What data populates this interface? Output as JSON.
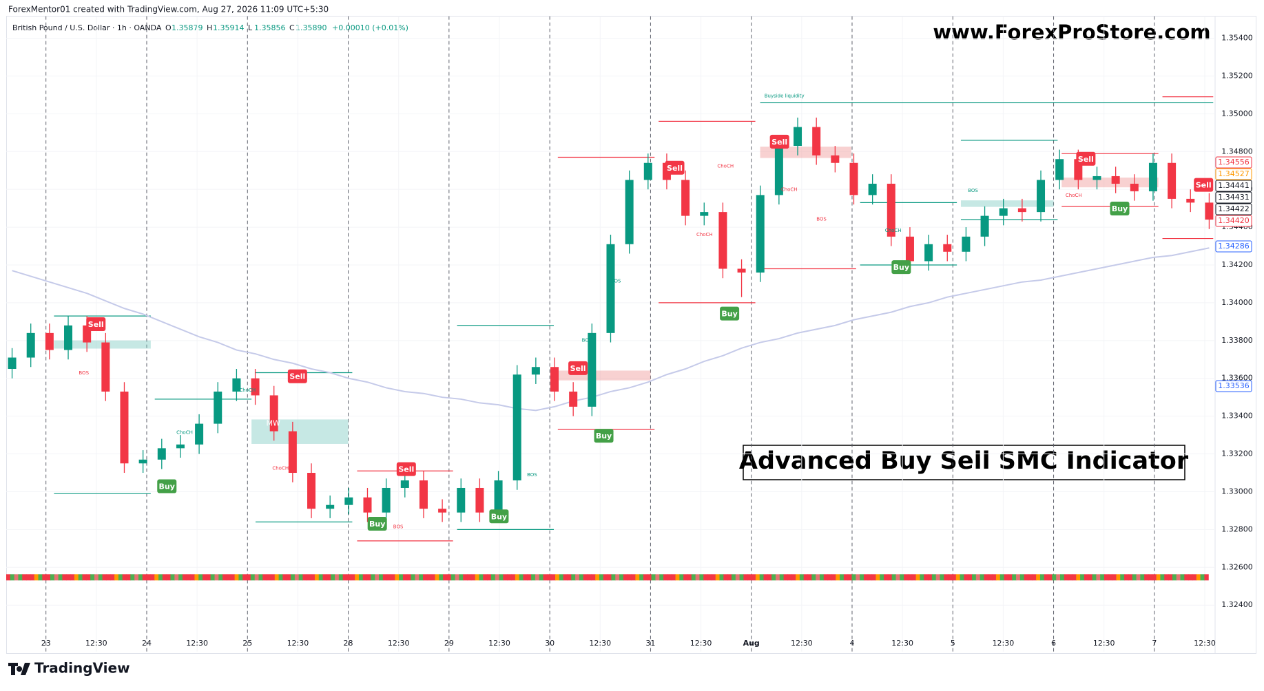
{
  "header": {
    "credit": "ForexMentor01 created with TradingView.com, Aug 27, 2026 11:09 UTC+5:30",
    "symbol": "British Pound / U.S. Dollar · 1h · OANDA",
    "ohlc": [
      {
        "key": "O",
        "value": "1.35879"
      },
      {
        "key": "H",
        "value": "1.35914"
      },
      {
        "key": "L",
        "value": "1.35856"
      },
      {
        "key": "C",
        "value": "1.35890"
      }
    ],
    "change": "+0.00010 (+0.01%)"
  },
  "watermark": "www.ForexProStore.com",
  "banner": "Advanced Buy Sell SMC Indicator",
  "footer": "TradingView",
  "chart_data": {
    "type": "candlestick",
    "up_color": "#089981",
    "down_color": "#f23645",
    "open": [
      1.3365,
      1.3371,
      1.3384,
      1.3375,
      1.3388,
      1.3379,
      1.3353,
      1.3315,
      1.3317,
      1.3323,
      1.3325,
      1.3336,
      1.3353,
      1.336,
      1.3351,
      1.3332,
      1.331,
      1.3291,
      1.3293,
      1.3297,
      1.3289,
      1.3302,
      1.3306,
      1.3291,
      1.3289,
      1.3302,
      1.3289,
      1.3306,
      1.3362,
      1.3366,
      1.3353,
      1.3345,
      1.3384,
      1.3431,
      1.3465,
      1.3474,
      1.3465,
      1.3446,
      1.3448,
      1.3418,
      1.3416,
      1.3457,
      1.3483,
      1.3493,
      1.3478,
      1.3474,
      1.3457,
      1.3463,
      1.3435,
      1.3422,
      1.3431,
      1.3427,
      1.3435,
      1.3446,
      1.345,
      1.3448,
      1.3465,
      1.3476,
      1.3465,
      1.3467,
      1.3463,
      1.3459,
      1.3474,
      1.3455,
      1.3453
    ],
    "high": [
      1.3376,
      1.3389,
      1.3389,
      1.3393,
      1.3393,
      1.3384,
      1.3358,
      1.3322,
      1.3328,
      1.333,
      1.3341,
      1.3358,
      1.3365,
      1.3365,
      1.3356,
      1.3337,
      1.3315,
      1.3298,
      1.3302,
      1.3302,
      1.3307,
      1.3311,
      1.3311,
      1.3296,
      1.3307,
      1.3307,
      1.3311,
      1.3367,
      1.3371,
      1.3371,
      1.3358,
      1.3389,
      1.3436,
      1.347,
      1.3479,
      1.3479,
      1.347,
      1.3453,
      1.3453,
      1.3423,
      1.3462,
      1.3488,
      1.3498,
      1.3498,
      1.3483,
      1.3479,
      1.3468,
      1.3468,
      1.344,
      1.3436,
      1.3436,
      1.344,
      1.3451,
      1.3455,
      1.3455,
      1.347,
      1.3481,
      1.3481,
      1.3472,
      1.3472,
      1.3468,
      1.3479,
      1.3479,
      1.346,
      1.3458
    ],
    "low": [
      1.336,
      1.3366,
      1.337,
      1.337,
      1.3374,
      1.3348,
      1.331,
      1.331,
      1.3312,
      1.3318,
      1.332,
      1.3331,
      1.3348,
      1.3346,
      1.3327,
      1.3305,
      1.3286,
      1.3286,
      1.3288,
      1.3284,
      1.3284,
      1.3297,
      1.3286,
      1.3284,
      1.3284,
      1.3284,
      1.3284,
      1.3301,
      1.3357,
      1.3348,
      1.334,
      1.334,
      1.3379,
      1.3426,
      1.346,
      1.346,
      1.3441,
      1.3441,
      1.3413,
      1.3403,
      1.3411,
      1.3452,
      1.3478,
      1.3473,
      1.3469,
      1.3452,
      1.3452,
      1.343,
      1.3417,
      1.3417,
      1.3422,
      1.3422,
      1.343,
      1.3441,
      1.3443,
      1.3443,
      1.346,
      1.346,
      1.346,
      1.3458,
      1.3454,
      1.3454,
      1.345,
      1.3448,
      1.3439
    ],
    "close": [
      1.3371,
      1.3384,
      1.3375,
      1.3388,
      1.3379,
      1.3353,
      1.3315,
      1.3317,
      1.3323,
      1.3325,
      1.3336,
      1.3353,
      1.336,
      1.3351,
      1.3332,
      1.331,
      1.3291,
      1.3293,
      1.3297,
      1.3289,
      1.3302,
      1.3306,
      1.3291,
      1.3289,
      1.3302,
      1.3289,
      1.3306,
      1.3362,
      1.3366,
      1.3353,
      1.3345,
      1.3384,
      1.3431,
      1.3465,
      1.3474,
      1.3465,
      1.3446,
      1.3448,
      1.3418,
      1.3416,
      1.3457,
      1.3483,
      1.3493,
      1.3478,
      1.3474,
      1.3457,
      1.3463,
      1.3435,
      1.3422,
      1.3431,
      1.3427,
      1.3435,
      1.3446,
      1.345,
      1.3448,
      1.3465,
      1.3476,
      1.3465,
      1.3467,
      1.3463,
      1.3459,
      1.3474,
      1.3455,
      1.3453,
      1.3444
    ],
    "ma": {
      "color": "#c5cae9",
      "values": [
        1.3417,
        1.3414,
        1.3411,
        1.3408,
        1.3405,
        1.3401,
        1.3397,
        1.3394,
        1.339,
        1.3386,
        1.3382,
        1.3379,
        1.3375,
        1.3373,
        1.337,
        1.3368,
        1.3365,
        1.3363,
        1.336,
        1.3358,
        1.3355,
        1.3353,
        1.3352,
        1.335,
        1.3349,
        1.3347,
        1.3346,
        1.3344,
        1.3343,
        1.3345,
        1.3348,
        1.335,
        1.3353,
        1.3355,
        1.3358,
        1.3362,
        1.3365,
        1.3369,
        1.3372,
        1.3376,
        1.3379,
        1.3381,
        1.3384,
        1.3386,
        1.3388,
        1.3391,
        1.3393,
        1.3395,
        1.3398,
        1.34,
        1.3403,
        1.3405,
        1.3407,
        1.3409,
        1.3411,
        1.3412,
        1.3414,
        1.3416,
        1.3418,
        1.342,
        1.3422,
        1.3424,
        1.3425,
        1.3427,
        1.3429
      ]
    },
    "levels": [
      {
        "value": 1.3393,
        "color": "#089981"
      },
      {
        "value": 1.3299,
        "color": "#089981"
      },
      {
        "value": 1.3349,
        "color": "#089981"
      },
      {
        "value": 1.3363,
        "color": "#089981"
      },
      {
        "value": 1.3284,
        "color": "#089981"
      },
      {
        "value": 1.3311,
        "color": "#f23645"
      },
      {
        "value": 1.3274,
        "color": "#f23645"
      },
      {
        "value": 1.3388,
        "color": "#089981"
      },
      {
        "value": 1.328,
        "color": "#089981"
      },
      {
        "value": 1.3477,
        "color": "#f23645"
      },
      {
        "value": 1.3333,
        "color": "#f23645"
      },
      {
        "value": 1.3496,
        "color": "#f23645"
      },
      {
        "value": 1.34,
        "color": "#f23645"
      },
      {
        "value": 1.3506,
        "color": "#089981"
      },
      {
        "value": 1.3418,
        "color": "#f23645"
      },
      {
        "value": 1.3453,
        "color": "#089981"
      },
      {
        "value": 1.342,
        "color": "#089981"
      },
      {
        "value": 1.3486,
        "color": "#089981"
      },
      {
        "value": 1.3444,
        "color": "#089981"
      },
      {
        "value": 1.3479,
        "color": "#f23645"
      },
      {
        "value": 1.3451,
        "color": "#f23645"
      },
      {
        "value": 1.3509,
        "color": "#f23645"
      },
      {
        "value": 1.3434,
        "color": "#f23645"
      }
    ],
    "signals": [
      "Sell",
      "Sell",
      "Sell",
      "Sell",
      "Sell",
      "Sell",
      "Sell",
      "Sell",
      "Buy",
      "Buy",
      "Buy",
      "Buy",
      "Buy",
      "Buy",
      "Buy"
    ],
    "notes": [
      "BOS",
      "ChoCH",
      "ChoCH",
      "ChoCH",
      "BOS",
      "BOS",
      "BOS",
      "BOS",
      "ChoCH",
      "ChoCH",
      "ChoCH",
      "BOS",
      "ChoCH",
      "BOS",
      "ChoCH",
      "Buyside liquidity",
      "MW"
    ],
    "ylim": [
      1.32154,
      1.35516
    ],
    "yticks": [
      {
        "value": 1.324,
        "label": "1.32400"
      },
      {
        "value": 1.326,
        "label": "1.32600"
      },
      {
        "value": 1.328,
        "label": "1.32800"
      },
      {
        "value": 1.33,
        "label": "1.33000"
      },
      {
        "value": 1.332,
        "label": "1.33200"
      },
      {
        "value": 1.334,
        "label": "1.33400"
      },
      {
        "value": 1.336,
        "label": "1.33600"
      },
      {
        "value": 1.338,
        "label": "1.33800"
      },
      {
        "value": 1.34,
        "label": "1.34000"
      },
      {
        "value": 1.342,
        "label": "1.34200"
      },
      {
        "value": 1.344,
        "label": "1.34400"
      },
      {
        "value": 1.346,
        "label": "1.34600"
      },
      {
        "value": 1.348,
        "label": "1.34800"
      },
      {
        "value": 1.35,
        "label": "1.35000"
      },
      {
        "value": 1.352,
        "label": "1.35200"
      },
      {
        "value": 1.354,
        "label": "1.35400"
      }
    ],
    "price_tags": [
      {
        "value": 1.34556,
        "label": "1.34556",
        "color": "#f23645"
      },
      {
        "value": 1.34527,
        "label": "1.34527",
        "color": "#ff9800"
      },
      {
        "value": 1.34441,
        "label": "1.34441",
        "color": "#131722"
      },
      {
        "value": 1.34431,
        "label": "1.34431",
        "color": "#131722"
      },
      {
        "value": 1.34422,
        "label": "1.34422",
        "color": "#131722"
      },
      {
        "value": 1.3442,
        "label": "1.34420",
        "color": "#f23645"
      },
      {
        "value": 1.34286,
        "label": "1.34286",
        "color": "#2962ff"
      },
      {
        "value": 1.33536,
        "label": "1.33536",
        "color": "#2962ff"
      }
    ],
    "x_labels": [
      "23",
      "12:30",
      "24",
      "12:30",
      "25",
      "12:30",
      "28",
      "12:30",
      "29",
      "12:30",
      "30",
      "12:30",
      "31",
      "12:30",
      "Aug",
      "12:30",
      "4",
      "12:30",
      "5",
      "12:30",
      "6",
      "12:30",
      "7",
      "12:30"
    ],
    "grid": true
  }
}
